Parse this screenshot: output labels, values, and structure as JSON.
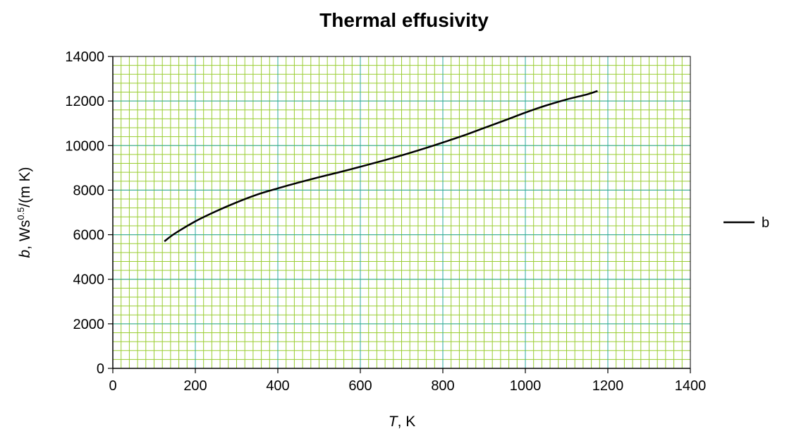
{
  "chart_data": {
    "type": "line",
    "title": "Thermal effusivity",
    "xlabel": {
      "var": "T",
      "unit": ", K"
    },
    "ylabel": {
      "var": "b",
      "unit_pre": ", Ws",
      "sup": "0.5",
      "unit_post": "/(m K)"
    },
    "xlim": [
      0,
      1400
    ],
    "ylim": [
      0,
      14000
    ],
    "x_ticks": [
      "0",
      "200",
      "400",
      "600",
      "800",
      "1000",
      "1200",
      "1400"
    ],
    "y_ticks": [
      "0",
      "2000",
      "4000",
      "6000",
      "8000",
      "10000",
      "12000",
      "14000"
    ],
    "grid": "on",
    "legend_position": "right",
    "colors": {
      "major_grid": "#2aa8a0",
      "minor_grid": "#9acd32",
      "line": "#000000",
      "plot_bg": "#ffffff"
    },
    "series": [
      {
        "name": "b",
        "x": [
          125,
          150,
          200,
          250,
          300,
          350,
          400,
          450,
          500,
          550,
          600,
          650,
          700,
          750,
          800,
          850,
          900,
          950,
          1000,
          1050,
          1100,
          1150,
          1175
        ],
        "y": [
          5700,
          6050,
          6600,
          7050,
          7450,
          7800,
          8080,
          8340,
          8580,
          8810,
          9050,
          9300,
          9560,
          9840,
          10140,
          10450,
          10790,
          11130,
          11480,
          11800,
          12070,
          12300,
          12450
        ]
      }
    ]
  }
}
